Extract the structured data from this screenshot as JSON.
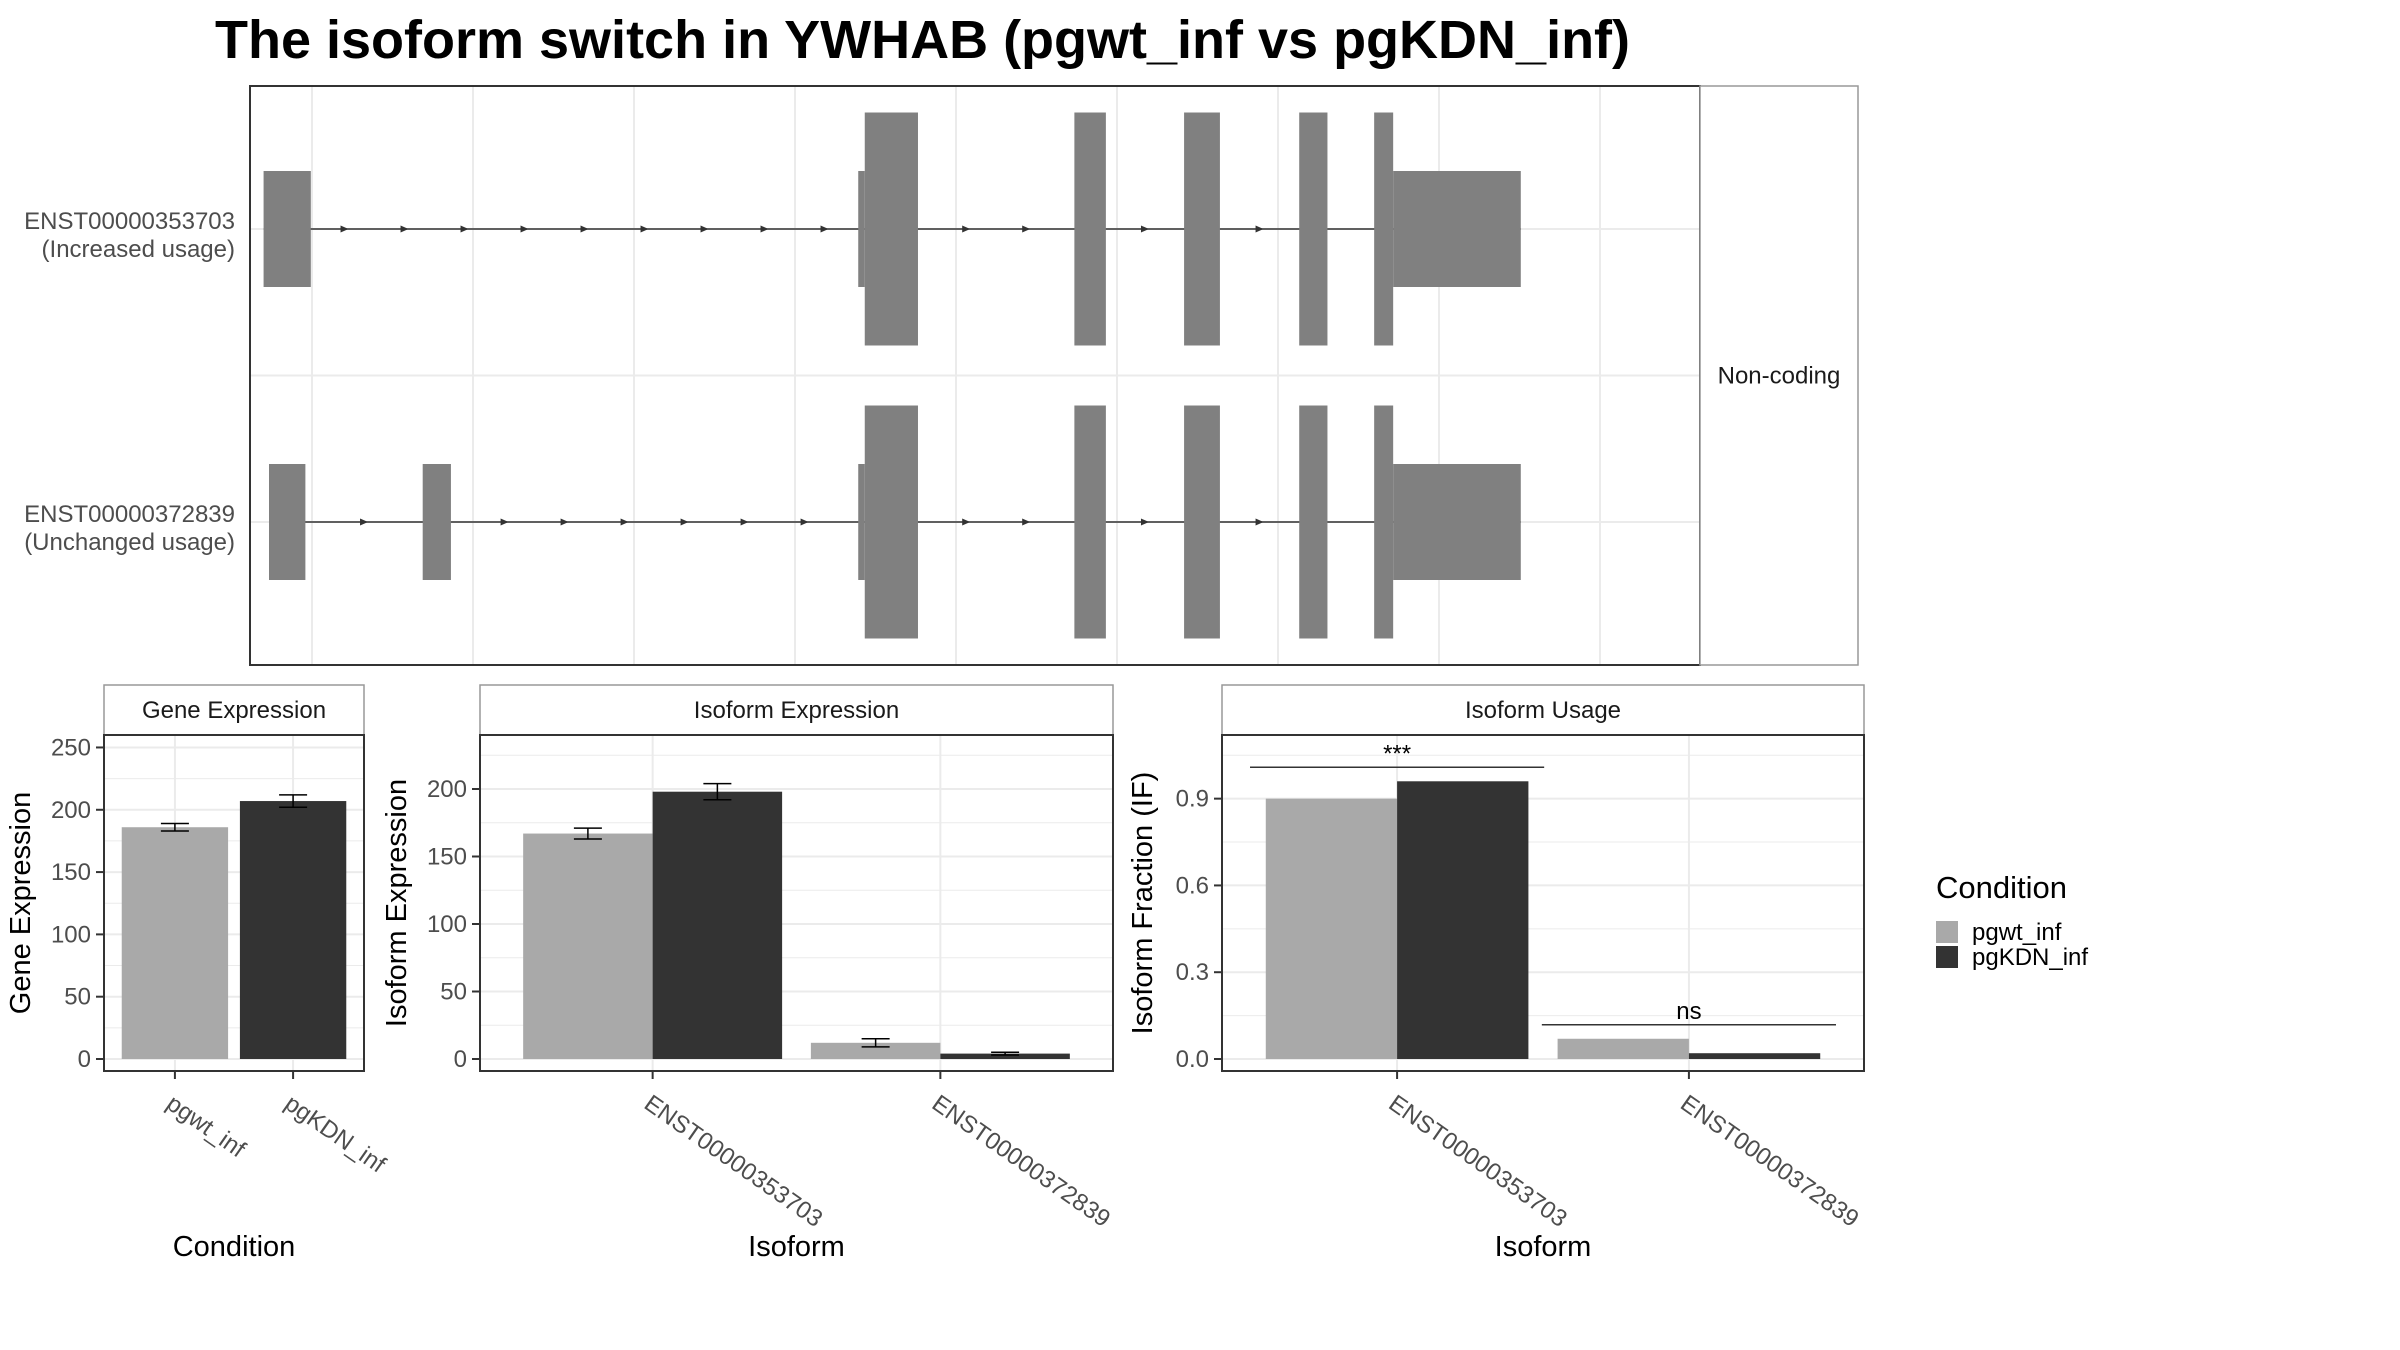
{
  "title": "The isoform switch in YWHAB (pgwt_inf vs pgKDN_inf)",
  "colors": {
    "pgwt_inf": "#A9A9A9",
    "pgKDN_inf": "#333333",
    "exon": "#808080",
    "grid": "#ebebeb",
    "panel_border": "#333333",
    "strip_border": "#999999"
  },
  "structure": {
    "strip_label": "Non-coding",
    "genomic_axis_tick_lines": 9,
    "isoforms": [
      {
        "id_label": "ENST00000353703",
        "usage_label": "(Increased usage)",
        "exons": [
          {
            "start": 0.05,
            "end": 0.92,
            "height": "small"
          },
          {
            "start": 11.0,
            "end": 11.12,
            "height": "small"
          },
          {
            "start": 11.12,
            "end": 12.1,
            "height": "large"
          },
          {
            "start": 14.98,
            "end": 15.56,
            "height": "large"
          },
          {
            "start": 17.0,
            "end": 17.66,
            "height": "large"
          },
          {
            "start": 19.12,
            "end": 19.64,
            "height": "large"
          },
          {
            "start": 20.5,
            "end": 20.85,
            "height": "large"
          },
          {
            "start": 20.85,
            "end": 23.2,
            "height": "small"
          }
        ]
      },
      {
        "id_label": "ENST00000372839",
        "usage_label": "(Unchanged usage)",
        "exons": [
          {
            "start": 0.15,
            "end": 0.82,
            "height": "small"
          },
          {
            "start": 2.98,
            "end": 3.5,
            "height": "small"
          },
          {
            "start": 11.0,
            "end": 11.12,
            "height": "small"
          },
          {
            "start": 11.12,
            "end": 12.1,
            "height": "large"
          },
          {
            "start": 14.98,
            "end": 15.56,
            "height": "large"
          },
          {
            "start": 17.0,
            "end": 17.66,
            "height": "large"
          },
          {
            "start": 19.12,
            "end": 19.64,
            "height": "large"
          },
          {
            "start": 20.5,
            "end": 20.85,
            "height": "large"
          },
          {
            "start": 20.85,
            "end": 23.2,
            "height": "small"
          }
        ]
      }
    ]
  },
  "chart_data": [
    {
      "type": "bar",
      "panel_title": "Gene Expression",
      "xlabel": "Condition",
      "ylabel": "Gene Expression",
      "categories": [
        "pgwt_inf",
        "pgKDN_inf"
      ],
      "values": [
        186,
        207
      ],
      "errors": [
        3,
        5
      ],
      "ylim": [
        0,
        260
      ],
      "yticks": [
        0,
        50,
        100,
        150,
        200,
        250
      ],
      "grid": true
    },
    {
      "type": "bar",
      "panel_title": "Isoform Expression",
      "xlabel": "Isoform",
      "ylabel": "Isoform Expression",
      "categories": [
        "ENST00000353703",
        "ENST00000372839"
      ],
      "series": [
        {
          "name": "pgwt_inf",
          "values": [
            167,
            12
          ],
          "errors": [
            4,
            3
          ]
        },
        {
          "name": "pgKDN_inf",
          "values": [
            198,
            4
          ],
          "errors": [
            6,
            1
          ]
        }
      ],
      "ylim": [
        0,
        240
      ],
      "yticks": [
        0,
        50,
        100,
        150,
        200
      ],
      "grid": true
    },
    {
      "type": "bar",
      "panel_title": "Isoform Usage",
      "xlabel": "Isoform",
      "ylabel": "Isoform Fraction (IF)",
      "categories": [
        "ENST00000353703",
        "ENST00000372839"
      ],
      "series": [
        {
          "name": "pgwt_inf",
          "values": [
            0.9,
            0.07
          ]
        },
        {
          "name": "pgKDN_inf",
          "values": [
            0.96,
            0.02
          ]
        }
      ],
      "significance": [
        "***",
        "ns"
      ],
      "ylim": [
        0,
        1.12
      ],
      "yticks": [
        0.0,
        0.3,
        0.6,
        0.9
      ],
      "ytick_labels": [
        "0.0",
        "0.3",
        "0.6",
        "0.9"
      ],
      "grid": true
    }
  ],
  "legend": {
    "title": "Condition",
    "position": "right",
    "entries": [
      "pgwt_inf",
      "pgKDN_inf"
    ]
  }
}
